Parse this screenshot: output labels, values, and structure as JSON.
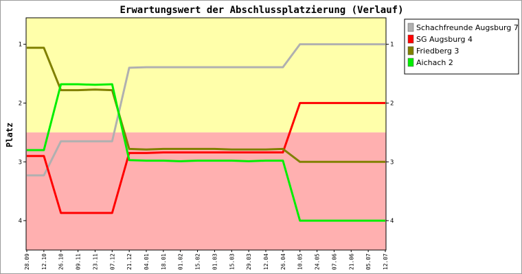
{
  "chart_data": {
    "type": "line",
    "title": "Erwartungswert der Abschlussplatzierung (Verlauf)",
    "ylabel": "Platz",
    "xlabel": "",
    "ylim": [
      0.55,
      4.5
    ],
    "y_inverted": true,
    "y_ticks": [
      "1",
      "2",
      "3",
      "4"
    ],
    "y_ticks_right": true,
    "grid": false,
    "background_zones": [
      {
        "from": 0.55,
        "to": 2.5,
        "color": "#ffffaa"
      },
      {
        "from": 2.5,
        "to": 4.5,
        "color": "#ffb0b0"
      }
    ],
    "x": [
      "28.09",
      "12.10",
      "26.10",
      "09.11",
      "23.11",
      "07.12",
      "21.12",
      "04.01",
      "18.01",
      "01.02",
      "15.02",
      "01.03",
      "15.03",
      "29.03",
      "12.04",
      "26.04",
      "10.05",
      "24.05",
      "07.06",
      "21.06",
      "05.07",
      "12.07"
    ],
    "legend_position": "top-right-outside",
    "series": [
      {
        "name": "Schachfreunde Augsburg 7",
        "color": "#b0b0b0",
        "values": [
          3.23,
          3.23,
          2.65,
          2.65,
          2.65,
          2.65,
          1.4,
          1.39,
          1.39,
          1.39,
          1.39,
          1.39,
          1.39,
          1.39,
          1.39,
          1.39,
          1.0,
          1.0,
          1.0,
          1.0,
          1.0,
          1.0
        ]
      },
      {
        "name": "SG Augsburg 4",
        "color": "#ff0000",
        "values": [
          2.9,
          2.9,
          3.87,
          3.87,
          3.87,
          3.87,
          2.85,
          2.85,
          2.84,
          2.84,
          2.84,
          2.84,
          2.84,
          2.84,
          2.84,
          2.84,
          2.0,
          2.0,
          2.0,
          2.0,
          2.0,
          2.0
        ]
      },
      {
        "name": "Friedberg 3",
        "color": "#808000",
        "values": [
          1.06,
          1.06,
          1.78,
          1.78,
          1.77,
          1.78,
          2.78,
          2.79,
          2.78,
          2.78,
          2.78,
          2.78,
          2.79,
          2.79,
          2.79,
          2.78,
          3.0,
          3.0,
          3.0,
          3.0,
          3.0,
          3.0
        ]
      },
      {
        "name": "Aichach 2",
        "color": "#00ee00",
        "values": [
          2.8,
          2.8,
          1.68,
          1.68,
          1.69,
          1.68,
          2.97,
          2.98,
          2.98,
          2.99,
          2.98,
          2.98,
          2.98,
          2.99,
          2.98,
          2.98,
          4.0,
          4.0,
          4.0,
          4.0,
          4.0,
          4.0
        ]
      }
    ]
  }
}
